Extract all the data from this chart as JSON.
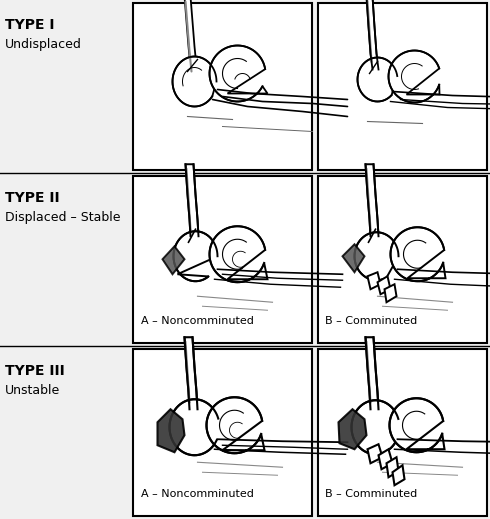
{
  "figure_width": 4.9,
  "figure_height": 5.19,
  "dpi": 100,
  "background_color": "#f0f0f0",
  "panel_bg": "#ffffff",
  "border_color": "#000000",
  "text_color": "#000000",
  "rows": [
    {
      "type_label": "TYPE I",
      "sub_label": "Undisplaced",
      "has_ab_labels": false
    },
    {
      "type_label": "TYPE II",
      "sub_label": "Displaced – Stable",
      "has_ab_labels": true
    },
    {
      "type_label": "TYPE III",
      "sub_label": "Unstable",
      "has_ab_labels": true
    }
  ],
  "type_fontsize": 10,
  "sub_fontsize": 9,
  "label_fontsize": 8,
  "label_A": "A – Noncomminuted",
  "label_B": "B – Comminuted"
}
